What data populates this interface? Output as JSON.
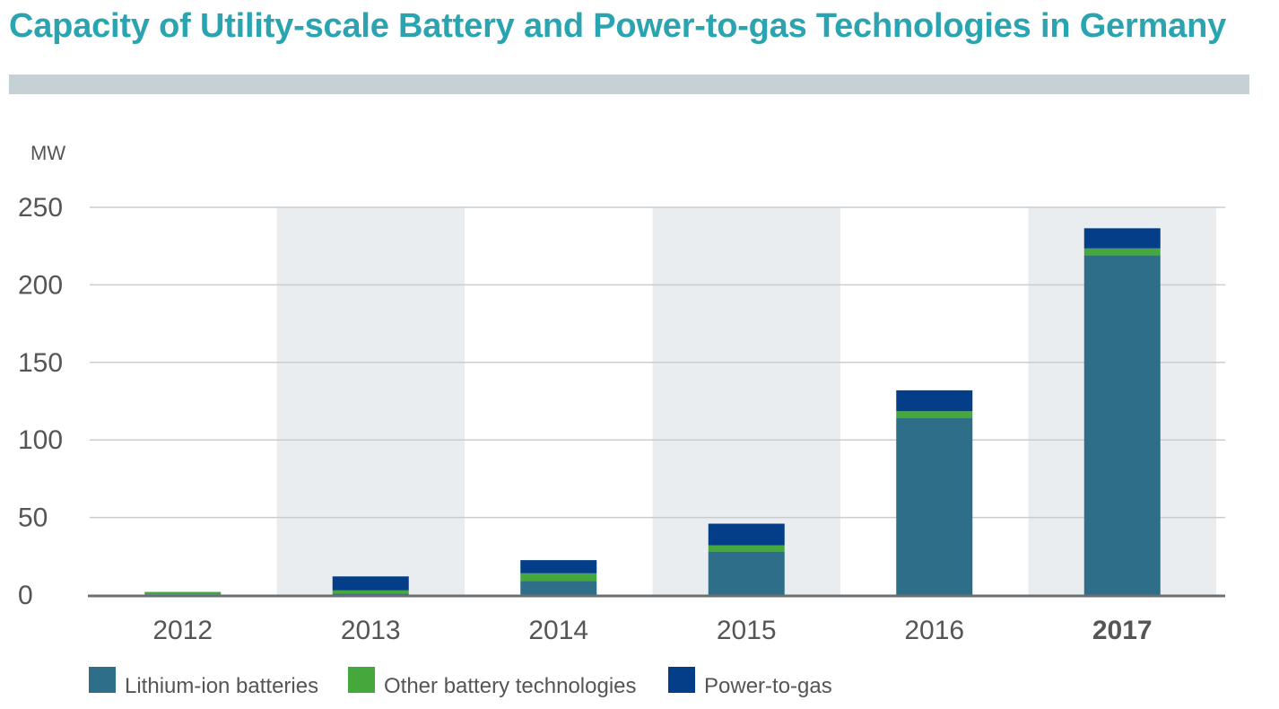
{
  "title": "Capacity of Utility-scale Battery and Power-to-gas Technologies in Germany",
  "chart_data": {
    "type": "bar",
    "stacked": true,
    "title": "Capacity of Utility-scale Battery and Power-to-gas Technologies in Germany",
    "ylabel": "MW",
    "xlabel": "",
    "ylim": [
      0,
      250
    ],
    "yticks": [
      "0",
      "50",
      "100",
      "150",
      "200",
      "250"
    ],
    "categories": [
      "2012",
      "2013",
      "2014",
      "2015",
      "2016",
      "2017"
    ],
    "highlight_category": "2017",
    "series": [
      {
        "name": "Lithium-ion batteries",
        "color": "#2e6e88",
        "values": [
          0.5,
          1,
          9,
          28,
          114,
          219
        ]
      },
      {
        "name": "Other battery technologies",
        "color": "#44a83c",
        "values": [
          1.5,
          2,
          5,
          4,
          4.5,
          4.5
        ]
      },
      {
        "name": "Power-to-gas",
        "color": "#043e89",
        "values": [
          0,
          9,
          8.5,
          14,
          13.5,
          13
        ]
      }
    ],
    "grid": true,
    "legend_position": "bottom-left"
  }
}
